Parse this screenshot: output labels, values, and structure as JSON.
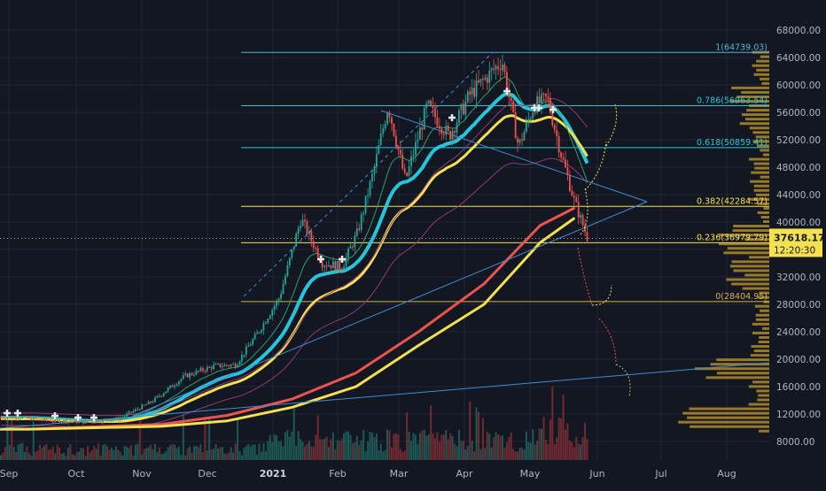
{
  "chart_data": {
    "type": "candlestick",
    "x_axis": {
      "tick_labels": [
        "Sep",
        "Oct",
        "Nov",
        "Dec",
        "2021",
        "Feb",
        "Mar",
        "Apr",
        "May",
        "Jun",
        "Jul",
        "Aug"
      ]
    },
    "y_axis": {
      "tick_labels": [
        "8000.00",
        "12000.00",
        "16000.00",
        "20000.00",
        "24000.00",
        "28000.00",
        "32000.00",
        "36000.00",
        "40000.00",
        "44000.00",
        "48000.00",
        "52000.00",
        "56000.00",
        "60000.00",
        "64000.00",
        "68000.00"
      ],
      "ylim": [
        6500,
        70000
      ]
    },
    "fib_levels": [
      {
        "label": "1(64739.03)",
        "value": 64739.03,
        "color": "#4fb3d9"
      },
      {
        "label": "0.786(56963.54)",
        "value": 56963.54,
        "color": "#26c6da"
      },
      {
        "label": "0.618(50859.41)",
        "value": 50859.41,
        "color": "#26c6da"
      },
      {
        "label": "0.382(42284.57)",
        "value": 42284.57,
        "color": "#f5e050"
      },
      {
        "label": "0.236(36979.79)",
        "value": 36979.79,
        "color": "#f5e050"
      },
      {
        "label": "0(28404.95)",
        "value": 28404.95,
        "color": "#d4b24c"
      }
    ],
    "last_price": {
      "label": "37618.17",
      "value": 37618.17,
      "countdown": "12:20:30"
    },
    "price_path": [
      [
        "Sep",
        11500
      ],
      [
        "Sep",
        11000
      ],
      [
        "Oct",
        10800
      ],
      [
        "Oct",
        11300
      ],
      [
        "Nov",
        13800
      ],
      [
        "Nov",
        17500
      ],
      [
        "Dec",
        19000
      ],
      [
        "Dec",
        19200
      ],
      [
        "Dec",
        23800
      ],
      [
        "2021",
        29000
      ],
      [
        "2021",
        40500
      ],
      [
        "2021",
        34000
      ],
      [
        "Feb",
        33500
      ],
      [
        "Feb",
        38500
      ],
      [
        "Feb",
        47000
      ],
      [
        "Feb",
        57000
      ],
      [
        "Mar",
        46000
      ],
      [
        "Mar",
        57000
      ],
      [
        "Mar",
        52500
      ],
      [
        "Apr",
        58500
      ],
      [
        "Apr",
        61000
      ],
      [
        "Apr",
        63500
      ],
      [
        "Apr",
        51000
      ],
      [
        "May",
        57000
      ],
      [
        "May",
        58000
      ],
      [
        "May",
        50000
      ],
      [
        "May",
        43000
      ],
      [
        "May",
        37500
      ]
    ],
    "moving_averages": [
      {
        "name": "",
        "color": "#ef5350",
        "points": [
          [
            "Sep",
            9800
          ],
          [
            "Nov",
            10500
          ],
          [
            "Dec",
            11800
          ],
          [
            "2021",
            14200
          ],
          [
            "Feb",
            18000
          ],
          [
            "Mar",
            24000
          ],
          [
            "Apr",
            31000
          ],
          [
            "May",
            39500
          ],
          [
            "May",
            42000
          ]
        ]
      },
      {
        "name": "",
        "color": "#f5e050",
        "points": [
          [
            "Sep",
            9800
          ],
          [
            "Nov",
            10200
          ],
          [
            "Dec",
            11000
          ],
          [
            "2021",
            13000
          ],
          [
            "Feb",
            16000
          ],
          [
            "Mar",
            22000
          ],
          [
            "Apr",
            28000
          ],
          [
            "May",
            37000
          ],
          [
            "May",
            40500
          ]
        ]
      }
    ],
    "colors": {
      "up": "#26a69a",
      "down": "#ef5350",
      "background": "#131722",
      "grid": "#1f2433"
    }
  }
}
